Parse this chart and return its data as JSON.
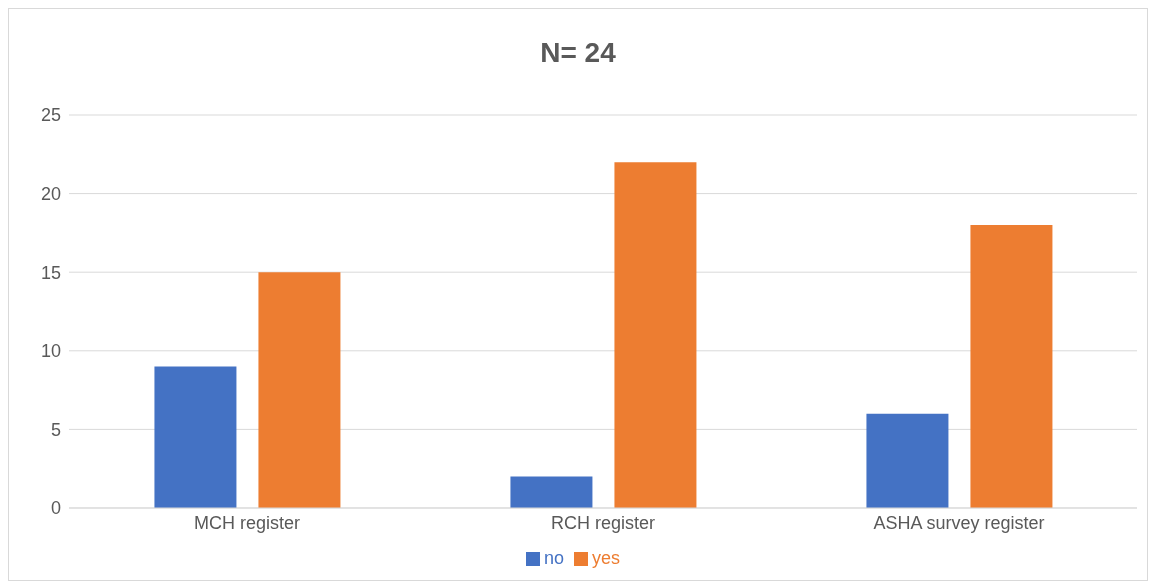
{
  "chart_data": {
    "type": "bar",
    "title": "N= 24",
    "categories": [
      "MCH register",
      "RCH register",
      "ASHA survey register"
    ],
    "series": [
      {
        "name": "no",
        "color": "#4472c4",
        "values": [
          9,
          2,
          6
        ]
      },
      {
        "name": "yes",
        "color": "#ed7d31",
        "values": [
          15,
          22,
          18
        ]
      }
    ],
    "ylim": [
      0,
      25
    ],
    "yticks": [
      0,
      5,
      10,
      15,
      20,
      25
    ],
    "grid": "y",
    "legend": "bottom"
  }
}
